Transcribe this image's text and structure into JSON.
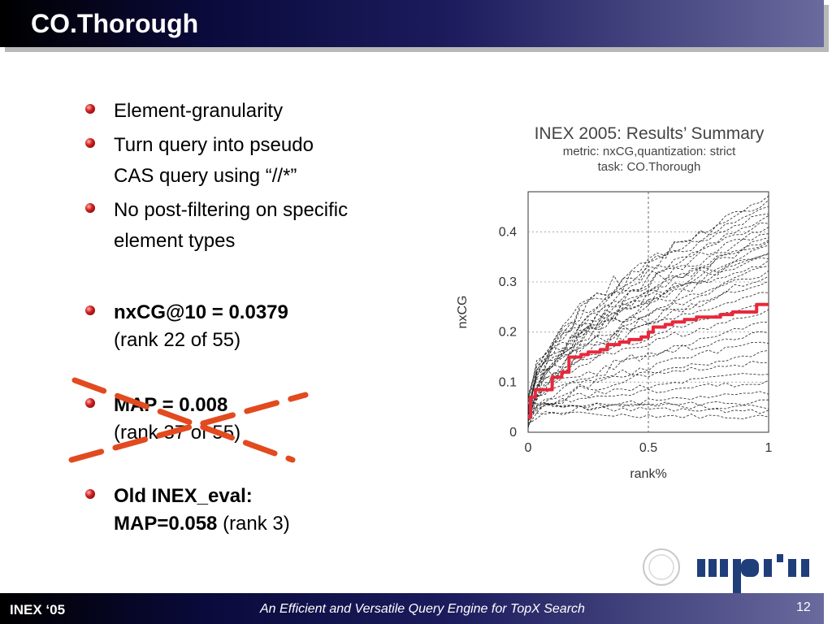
{
  "slide": {
    "title": "CO.Thorough"
  },
  "bullets": [
    {
      "lines": [
        "Element-granularity"
      ]
    },
    {
      "lines": [
        "Turn query into pseudo",
        "CAS query using “//*”"
      ]
    },
    {
      "lines": [
        "No post-filtering on specific",
        "element types"
      ]
    },
    {
      "bold": "nxCG@10 = 0.0379",
      "normal": "(rank 22 of 55)"
    },
    {
      "bold": "MAP = 0.008",
      "normal": "(rank 37 of 55)",
      "crossed_out": true
    },
    {
      "bold": "Old INEX_eval:",
      "bold2": "MAP=0.058",
      "normal": " (rank 3)"
    }
  ],
  "chart": {
    "title": "INEX 2005: Results’ Summary",
    "subtitle1": "metric: nxCG,quantization: strict",
    "subtitle2": "task: CO.Thorough",
    "xlabel": "rank%",
    "ylabel": "nxCG",
    "xticks": [
      "0",
      "0.5",
      "1"
    ],
    "yticks": [
      "0",
      "0.1",
      "0.2",
      "0.3",
      "0.4"
    ]
  },
  "chart_data": {
    "type": "line",
    "title": "INEX 2005: Results’ Summary",
    "subtitle": "metric: nxCG,quantization: strict / task: CO.Thorough",
    "xlabel": "rank%",
    "ylabel": "nxCG",
    "xlim": [
      0,
      1
    ],
    "ylim": [
      0,
      0.48
    ],
    "grid": "dashed at x=0.5 and y=0.1,0.2,0.3,0.4",
    "highlight_series": {
      "color": "#e8283c",
      "x": [
        0,
        0.01,
        0.03,
        0.1,
        0.14,
        0.17,
        0.22,
        0.25,
        0.3,
        0.33,
        0.38,
        0.42,
        0.47,
        0.5,
        0.52,
        0.57,
        0.6,
        0.65,
        0.7,
        0.75,
        0.8,
        0.85,
        0.9,
        0.93,
        0.95,
        1.0
      ],
      "y": [
        0.03,
        0.07,
        0.085,
        0.11,
        0.12,
        0.15,
        0.155,
        0.16,
        0.165,
        0.175,
        0.18,
        0.185,
        0.19,
        0.2,
        0.21,
        0.215,
        0.22,
        0.225,
        0.23,
        0.23,
        0.235,
        0.24,
        0.24,
        0.24,
        0.255,
        0.255
      ]
    },
    "other_series_final_values": [
      0.47,
      0.46,
      0.45,
      0.44,
      0.43,
      0.42,
      0.41,
      0.4,
      0.39,
      0.385,
      0.38,
      0.37,
      0.36,
      0.355,
      0.35,
      0.34,
      0.33,
      0.32,
      0.31,
      0.3,
      0.28,
      0.26,
      0.24,
      0.22,
      0.2,
      0.18,
      0.16,
      0.14,
      0.12,
      0.1,
      0.08,
      0.06,
      0.05,
      0.04,
      0.03
    ],
    "other_series_color": "#222222"
  },
  "footer": {
    "left": "INEX ‘05",
    "center": "An Efficient and Versatile Query Engine for TopX Search",
    "page": "12"
  },
  "logo": {
    "text": "mpi"
  },
  "colors": {
    "accent_red": "#d62828",
    "cross_red": "#e24a1f"
  }
}
